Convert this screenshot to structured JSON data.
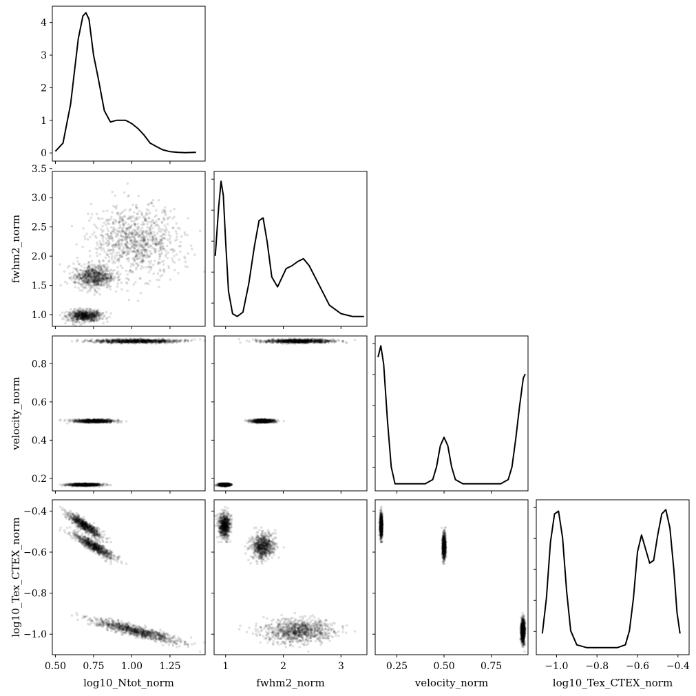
{
  "chart_data": {
    "type": "scatter",
    "variables": [
      "log10_Ntot_norm",
      "fwhm2_norm",
      "velocity_norm",
      "log10_Tex_CTEX_norm"
    ],
    "ranges": {
      "log10_Ntot_norm": [
        0.48,
        1.48
      ],
      "fwhm2_norm": [
        0.8,
        3.45
      ],
      "velocity_norm": [
        0.135,
        0.945
      ],
      "log10_Tex_CTEX_norm": [
        -1.1,
        -0.345
      ]
    },
    "ticks": {
      "log10_Ntot_norm": [
        0.5,
        0.75,
        1.0,
        1.25
      ],
      "fwhm2_norm": [
        1,
        2,
        3
      ],
      "velocity_norm": [
        0.25,
        0.5,
        0.75
      ],
      "log10_Tex_CTEX_norm": [
        -1.0,
        -0.8,
        -0.6,
        -0.4
      ],
      "velocity_norm_y": [
        0.2,
        0.4,
        0.6,
        0.8
      ],
      "fwhm2_norm_y": [
        1.0,
        1.5,
        2.0,
        2.5,
        3.0,
        3.5
      ]
    },
    "tick_labels": {
      "log10_Ntot_norm": [
        "0.50",
        "0.75",
        "1.00",
        "1.25"
      ],
      "fwhm2_norm": [
        "1",
        "2",
        "3"
      ],
      "velocity_norm": [
        "0.25",
        "0.50",
        "0.75"
      ],
      "log10_Tex_CTEX_norm": [
        "−1.0",
        "−0.8",
        "−0.6",
        "−0.4"
      ],
      "velocity_norm_y": [
        "0.2",
        "0.4",
        "0.6",
        "0.8"
      ],
      "fwhm2_norm_y": [
        "1.0",
        "1.5",
        "2.0",
        "2.5",
        "3.0",
        "3.5"
      ],
      "density_y": [
        "0",
        "1",
        "2",
        "3",
        "4"
      ]
    },
    "diagonal_kde": {
      "log10_Ntot_norm": {
        "ylim": [
          -0.25,
          4.5
        ],
        "x": [
          0.5,
          0.55,
          0.6,
          0.65,
          0.68,
          0.7,
          0.72,
          0.75,
          0.78,
          0.82,
          0.86,
          0.9,
          0.93,
          0.96,
          1.0,
          1.04,
          1.08,
          1.12,
          1.16,
          1.2,
          1.25,
          1.3,
          1.35,
          1.42
        ],
        "y": [
          0.05,
          0.3,
          1.5,
          3.5,
          4.2,
          4.3,
          4.1,
          3.0,
          2.3,
          1.3,
          0.95,
          1.0,
          1.0,
          1.0,
          0.9,
          0.75,
          0.55,
          0.3,
          0.2,
          0.1,
          0.04,
          0.02,
          0.01,
          0.02
        ]
      },
      "fwhm2_norm": {
        "ylim": [
          -0.05,
          1.05
        ],
        "x": [
          0.82,
          0.88,
          0.92,
          0.96,
          1.0,
          1.05,
          1.12,
          1.2,
          1.3,
          1.4,
          1.5,
          1.58,
          1.65,
          1.72,
          1.8,
          1.9,
          1.98,
          2.05,
          2.15,
          2.25,
          2.35,
          2.45,
          2.55,
          2.65,
          2.8,
          3.0,
          3.2,
          3.4
        ],
        "y": [
          0.45,
          0.8,
          0.98,
          0.88,
          0.55,
          0.2,
          0.04,
          0.02,
          0.05,
          0.25,
          0.52,
          0.7,
          0.72,
          0.55,
          0.3,
          0.23,
          0.3,
          0.36,
          0.38,
          0.41,
          0.43,
          0.38,
          0.3,
          0.22,
          0.1,
          0.04,
          0.02,
          0.02
        ]
      },
      "velocity_norm": {
        "ylim": [
          -0.05,
          1.05
        ],
        "x": [
          0.15,
          0.165,
          0.18,
          0.2,
          0.22,
          0.24,
          0.3,
          0.4,
          0.44,
          0.46,
          0.48,
          0.5,
          0.52,
          0.54,
          0.56,
          0.6,
          0.7,
          0.8,
          0.84,
          0.86,
          0.88,
          0.9,
          0.92,
          0.93
        ],
        "y": [
          0.9,
          0.98,
          0.85,
          0.45,
          0.12,
          0.0,
          0.0,
          0.0,
          0.03,
          0.12,
          0.27,
          0.33,
          0.27,
          0.12,
          0.03,
          0.0,
          0.0,
          0.0,
          0.03,
          0.12,
          0.32,
          0.55,
          0.75,
          0.78
        ]
      },
      "log10_Tex_CTEX_norm": {
        "ylim": [
          -0.05,
          1.05
        ],
        "x": [
          -1.07,
          -1.05,
          -1.03,
          -1.01,
          -0.99,
          -0.97,
          -0.95,
          -0.93,
          -0.9,
          -0.85,
          -0.78,
          -0.7,
          -0.66,
          -0.64,
          -0.62,
          -0.6,
          -0.58,
          -0.56,
          -0.54,
          -0.52,
          -0.5,
          -0.48,
          -0.46,
          -0.44,
          -0.42,
          -0.405,
          -0.39
        ],
        "y": [
          0.1,
          0.35,
          0.75,
          0.95,
          0.97,
          0.78,
          0.4,
          0.12,
          0.02,
          0.0,
          0.0,
          0.0,
          0.02,
          0.12,
          0.35,
          0.68,
          0.8,
          0.7,
          0.6,
          0.62,
          0.8,
          0.95,
          0.98,
          0.85,
          0.55,
          0.25,
          0.1
        ]
      }
    },
    "clusters": [
      {
        "log10_Ntot_norm": 0.69,
        "fwhm2_norm": 0.98,
        "velocity_norm": 0.167,
        "log10_Tex_CTEX_norm": -0.47,
        "sd": [
          0.055,
          0.05,
          0.003,
          0.03
        ],
        "n": 700,
        "corr_x0_x3": -0.9
      },
      {
        "log10_Ntot_norm": 0.75,
        "fwhm2_norm": 1.65,
        "velocity_norm": 0.5,
        "log10_Tex_CTEX_norm": -0.57,
        "sd": [
          0.065,
          0.1,
          0.004,
          0.03
        ],
        "n": 700,
        "corr_x0_x3": -0.9
      },
      {
        "log10_Ntot_norm": 1.03,
        "fwhm2_norm": 2.25,
        "velocity_norm": 0.918,
        "log10_Tex_CTEX_norm": -0.985,
        "sd": [
          0.14,
          0.3,
          0.005,
          0.028
        ],
        "n": 900,
        "corr_x0_x3": -0.9
      }
    ]
  }
}
